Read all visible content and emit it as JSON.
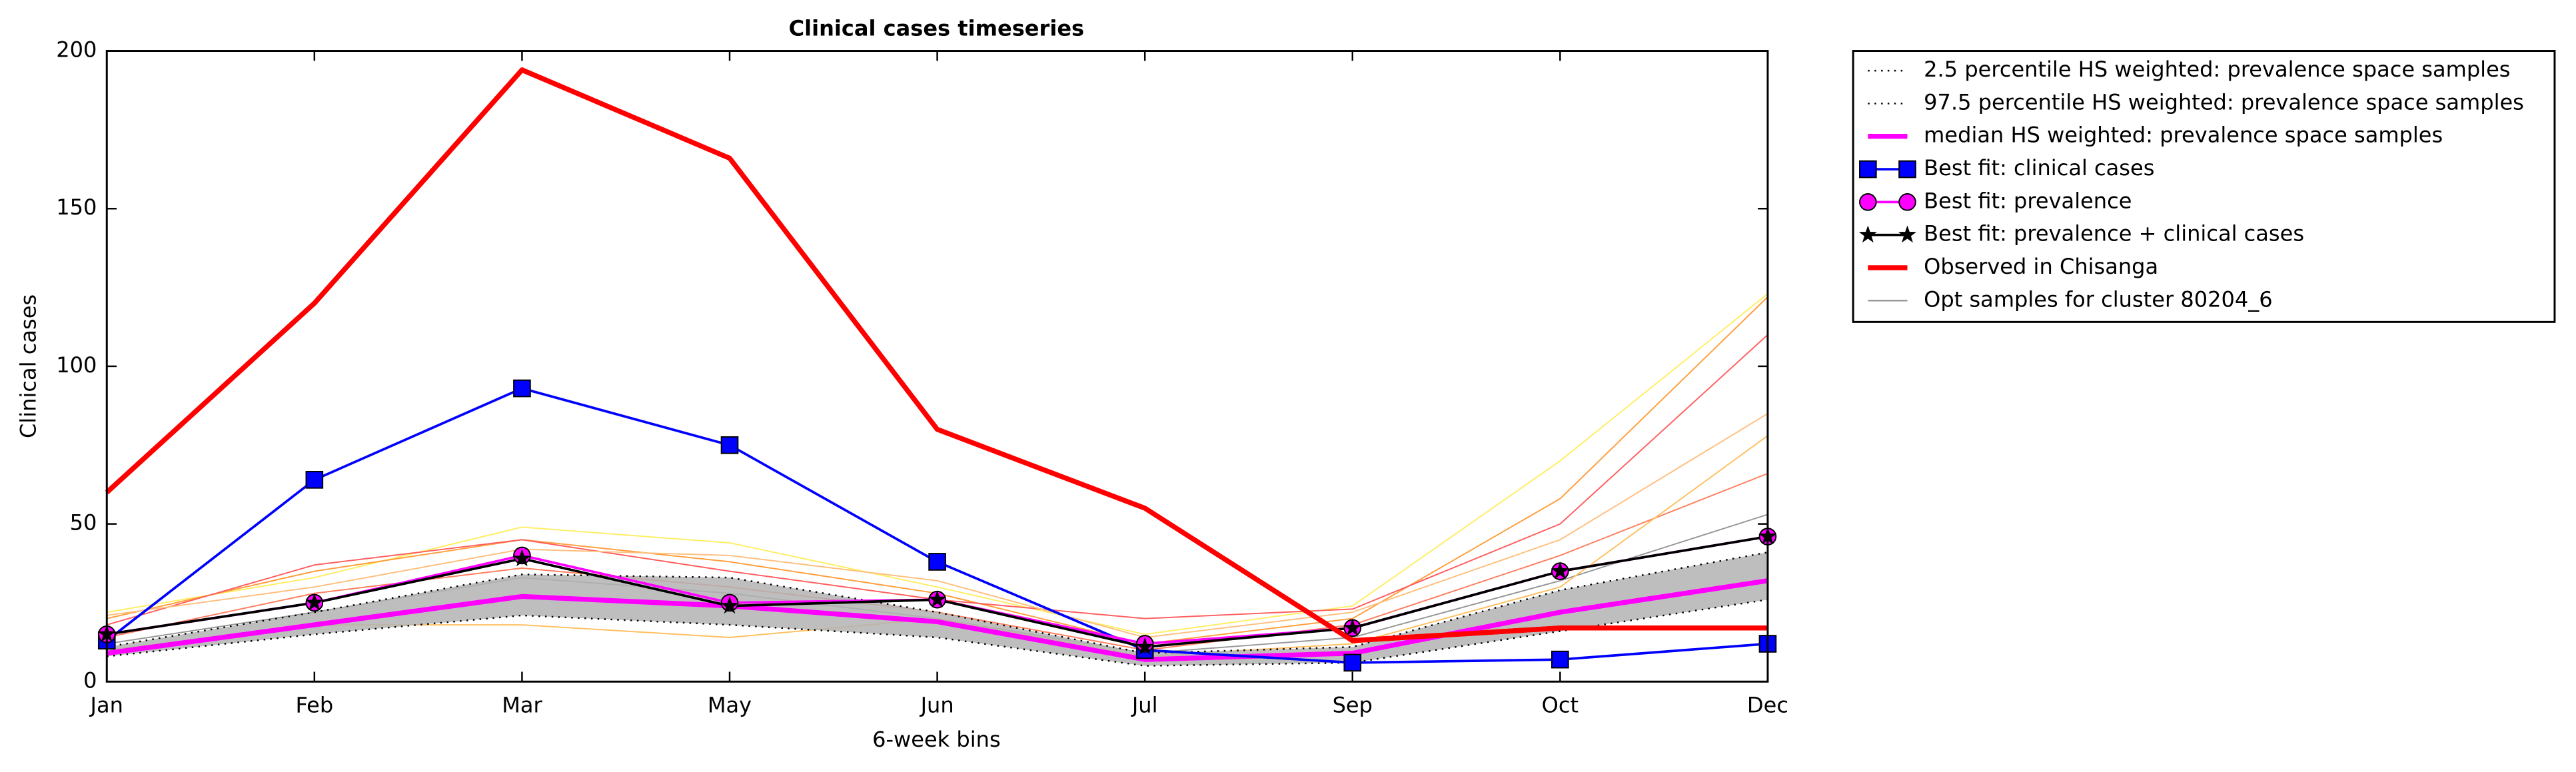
{
  "chart_data": {
    "type": "line",
    "title": "Clinical cases timeseries",
    "xlabel": "6-week bins",
    "ylabel": "Clinical cases",
    "categories": [
      "Jan",
      "Feb",
      "Mar",
      "May",
      "Jun",
      "Jul",
      "Sep",
      "Oct",
      "Dec"
    ],
    "ylim": [
      0,
      200
    ],
    "yticks": [
      0,
      50,
      100,
      150,
      200
    ],
    "series": [
      {
        "name": "2.5 percentile HS weighted: prevalence space samples",
        "color": "#000000",
        "width": 1,
        "dash": "1,3",
        "values": [
          8,
          15,
          21,
          18,
          14,
          5,
          6,
          16,
          26
        ]
      },
      {
        "name": "97.5 percentile HS weighted: prevalence space samples",
        "color": "#000000",
        "width": 1,
        "dash": "1,3",
        "values": [
          11,
          22,
          34,
          33,
          22,
          9,
          11,
          29,
          41
        ]
      },
      {
        "name": "median HS weighted: prevalence space samples",
        "color": "#ff00ff",
        "width": 3,
        "values": [
          9,
          18,
          27,
          24,
          19,
          7,
          9,
          22,
          32
        ]
      },
      {
        "name": "Best fit: clinical cases",
        "color": "#0000ff",
        "width": 1.5,
        "marker": "square",
        "values": [
          13,
          64,
          93,
          75,
          38,
          10,
          6,
          7,
          12
        ]
      },
      {
        "name": "Best fit: prevalence",
        "color": "#ff00ff",
        "width": 1.5,
        "marker": "circle",
        "values": [
          15,
          25,
          40,
          25,
          26,
          12,
          17,
          35,
          46
        ]
      },
      {
        "name": "Best fit: prevalence + clinical cases",
        "color": "#000000",
        "width": 1.5,
        "marker": "star",
        "values": [
          15,
          25,
          39,
          24,
          26,
          11,
          17,
          35,
          46
        ]
      },
      {
        "name": "Observed in Chisanga",
        "color": "#ff0000",
        "width": 3,
        "values": [
          60,
          120,
          194,
          166,
          80,
          55,
          13,
          17,
          17
        ]
      }
    ],
    "samples": {
      "name": "Opt samples for cluster 80204_6",
      "color": "#999999",
      "lines": [
        {
          "color": "#ffee66",
          "values": [
            22,
            33,
            49,
            44,
            30,
            15,
            24,
            70,
            123
          ]
        },
        {
          "color": "#ffa040",
          "values": [
            20,
            35,
            45,
            38,
            28,
            12,
            20,
            58,
            122
          ]
        },
        {
          "color": "#ff6060",
          "values": [
            18,
            37,
            45,
            35,
            26,
            20,
            23,
            50,
            110
          ]
        },
        {
          "color": "#ffc080",
          "values": [
            21,
            30,
            42,
            40,
            32,
            14,
            22,
            45,
            85
          ]
        },
        {
          "color": "#ff8060",
          "values": [
            14,
            28,
            36,
            30,
            22,
            10,
            18,
            40,
            66
          ]
        },
        {
          "color": "#999999",
          "values": [
            12,
            22,
            33,
            28,
            20,
            9,
            14,
            32,
            53
          ]
        },
        {
          "color": "#ffc060",
          "values": [
            10,
            18,
            18,
            14,
            20,
            8,
            12,
            30,
            78
          ]
        }
      ]
    }
  }
}
